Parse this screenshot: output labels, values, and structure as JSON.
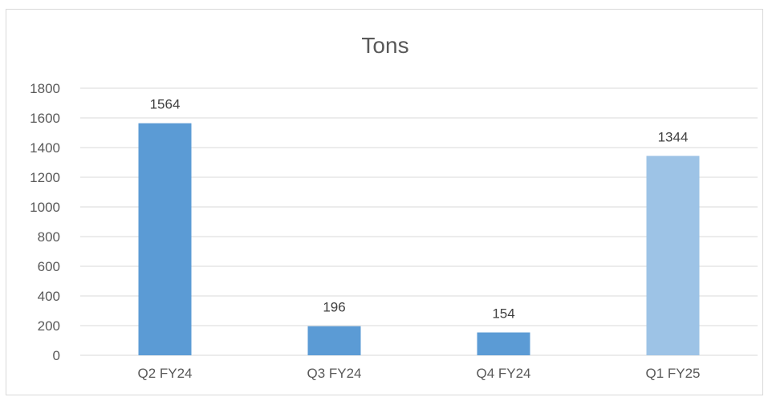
{
  "chart_data": {
    "type": "bar",
    "title": "Tons",
    "xlabel": "",
    "ylabel": "",
    "categories": [
      "Q2 FY24",
      "Q3 FY24",
      "Q4 FY24",
      "Q1 FY25"
    ],
    "values": [
      1564,
      196,
      154,
      1344
    ],
    "data_labels": [
      "1564",
      "196",
      "154",
      "1344"
    ],
    "ylim": [
      0,
      1800
    ],
    "y_ticks": [
      0,
      200,
      400,
      600,
      800,
      1000,
      1200,
      1400,
      1600,
      1800
    ],
    "grid": true,
    "legend": "none",
    "colors": {
      "bar": "#5b9bd5",
      "bar_highlight": "#9dc3e6",
      "grid": "#d9d9d9",
      "text": "#595959"
    },
    "highlight_index": 3
  }
}
